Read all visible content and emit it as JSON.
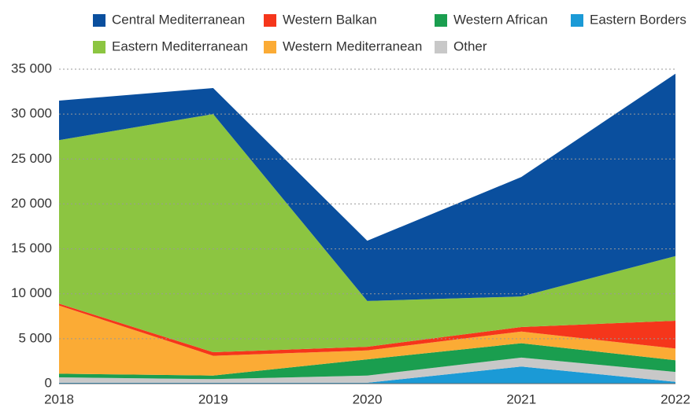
{
  "chart_data": {
    "type": "stacked_area",
    "categories": [
      "2018",
      "2019",
      "2020",
      "2021",
      "2022"
    ],
    "series": [
      {
        "name": "Eastern Borders",
        "color": "#1b9ad6",
        "values": [
          100,
          100,
          100,
          1900,
          200
        ]
      },
      {
        "name": "Other",
        "color": "#c8c8c8",
        "values": [
          600,
          400,
          800,
          1000,
          1100
        ]
      },
      {
        "name": "Western African",
        "color": "#1a9e4f",
        "values": [
          400,
          400,
          1800,
          1600,
          1300
        ]
      },
      {
        "name": "Western Mediterranean",
        "color": "#fbab35",
        "values": [
          7600,
          2200,
          1000,
          1300,
          1300
        ]
      },
      {
        "name": "Western Balkan",
        "color": "#f5361b",
        "values": [
          200,
          400,
          400,
          500,
          3100
        ]
      },
      {
        "name": "Eastern Mediterranean",
        "color": "#8cc541",
        "values": [
          18200,
          26500,
          5100,
          3400,
          7200
        ]
      },
      {
        "name": "Central Mediterranean",
        "color": "#0a4f9e",
        "values": [
          4400,
          2900,
          6700,
          13300,
          20300
        ]
      }
    ],
    "ylim": [
      0,
      35000
    ],
    "yticks": [
      0,
      {
        "value": 5000,
        "label": "5 000"
      },
      {
        "value": 10000,
        "label": "10 000"
      },
      {
        "value": 15000,
        "label": "15 000"
      },
      {
        "value": 20000,
        "label": "20 000"
      },
      {
        "value": 25000,
        "label": "25 000"
      },
      {
        "value": 30000,
        "label": "30 000"
      },
      {
        "value": 35000,
        "label": "35 000"
      }
    ],
    "grid": true
  }
}
